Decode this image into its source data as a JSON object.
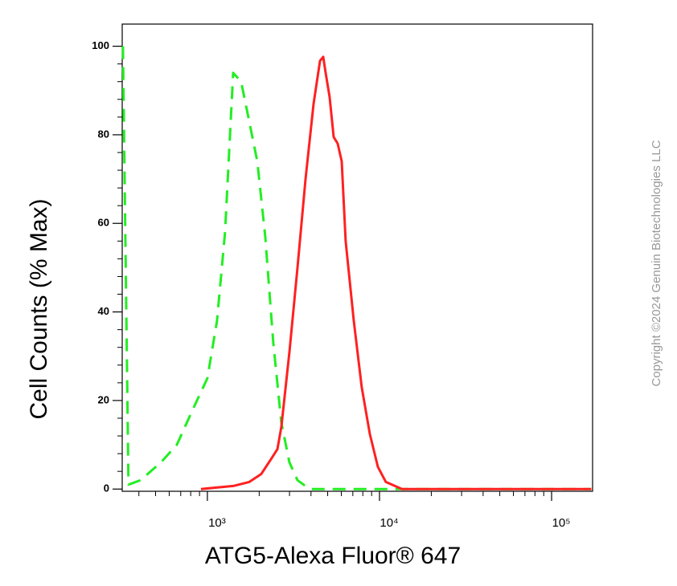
{
  "chart_data": {
    "type": "line",
    "xlabel": "ATG5-Alexa Fluor® 647",
    "ylabel": "Cell Counts (% Max)",
    "watermark": "Copyright ©2024 Genuin Biotechnologies LLC",
    "xscale": "log",
    "xlim": [
      320,
      173000
    ],
    "ylim": [
      -0.5,
      105
    ],
    "xticks": [
      {
        "value": 1000,
        "label": "10³"
      },
      {
        "value": 10000,
        "label": "10⁴"
      },
      {
        "value": 100000,
        "label": "10⁵"
      }
    ],
    "xminorticks": [
      400,
      500,
      600,
      700,
      800,
      900,
      2000,
      3000,
      4000,
      5000,
      6000,
      7000,
      8000,
      9000,
      20000,
      30000,
      40000,
      50000,
      60000,
      70000,
      80000,
      90000
    ],
    "yticks": [
      0,
      20,
      40,
      60,
      80,
      100
    ],
    "yminorticks": [
      4,
      8,
      12,
      16,
      24,
      28,
      32,
      36,
      44,
      48,
      52,
      56,
      64,
      68,
      72,
      76,
      84,
      88,
      92,
      96
    ],
    "series": [
      {
        "color": "#22ee22",
        "line_style": "dashed",
        "x": [
          323,
          348,
          409,
          536,
          664,
          824,
          1000,
          1138,
          1267,
          1412,
          1571,
          1750,
          1949,
          2168,
          2415,
          2690,
          2997,
          3337,
          3918,
          5000,
          50000,
          170000
        ],
        "values": [
          100,
          1,
          2,
          6,
          10,
          18,
          25,
          38,
          58,
          94,
          92,
          83,
          74,
          57,
          33,
          15,
          6,
          2,
          0,
          0,
          0,
          0
        ]
      },
      {
        "color": "#ff2020",
        "line_style": "solid",
        "x": [
          917,
          1412,
          1750,
          2055,
          2366,
          2551,
          2690,
          2997,
          3337,
          3716,
          4139,
          4510,
          4709,
          4864,
          5129,
          5418,
          5715,
          6030,
          6362,
          7087,
          7889,
          8785,
          9790,
          10890,
          13520,
          50000,
          170000
        ],
        "values": [
          0,
          0.7,
          1.6,
          3.4,
          7,
          9,
          14,
          31,
          50,
          70,
          87,
          96.7,
          97.6,
          94,
          88.6,
          79.5,
          78,
          74,
          56,
          38,
          23,
          12.5,
          5,
          1.6,
          0,
          0,
          0
        ]
      }
    ]
  }
}
